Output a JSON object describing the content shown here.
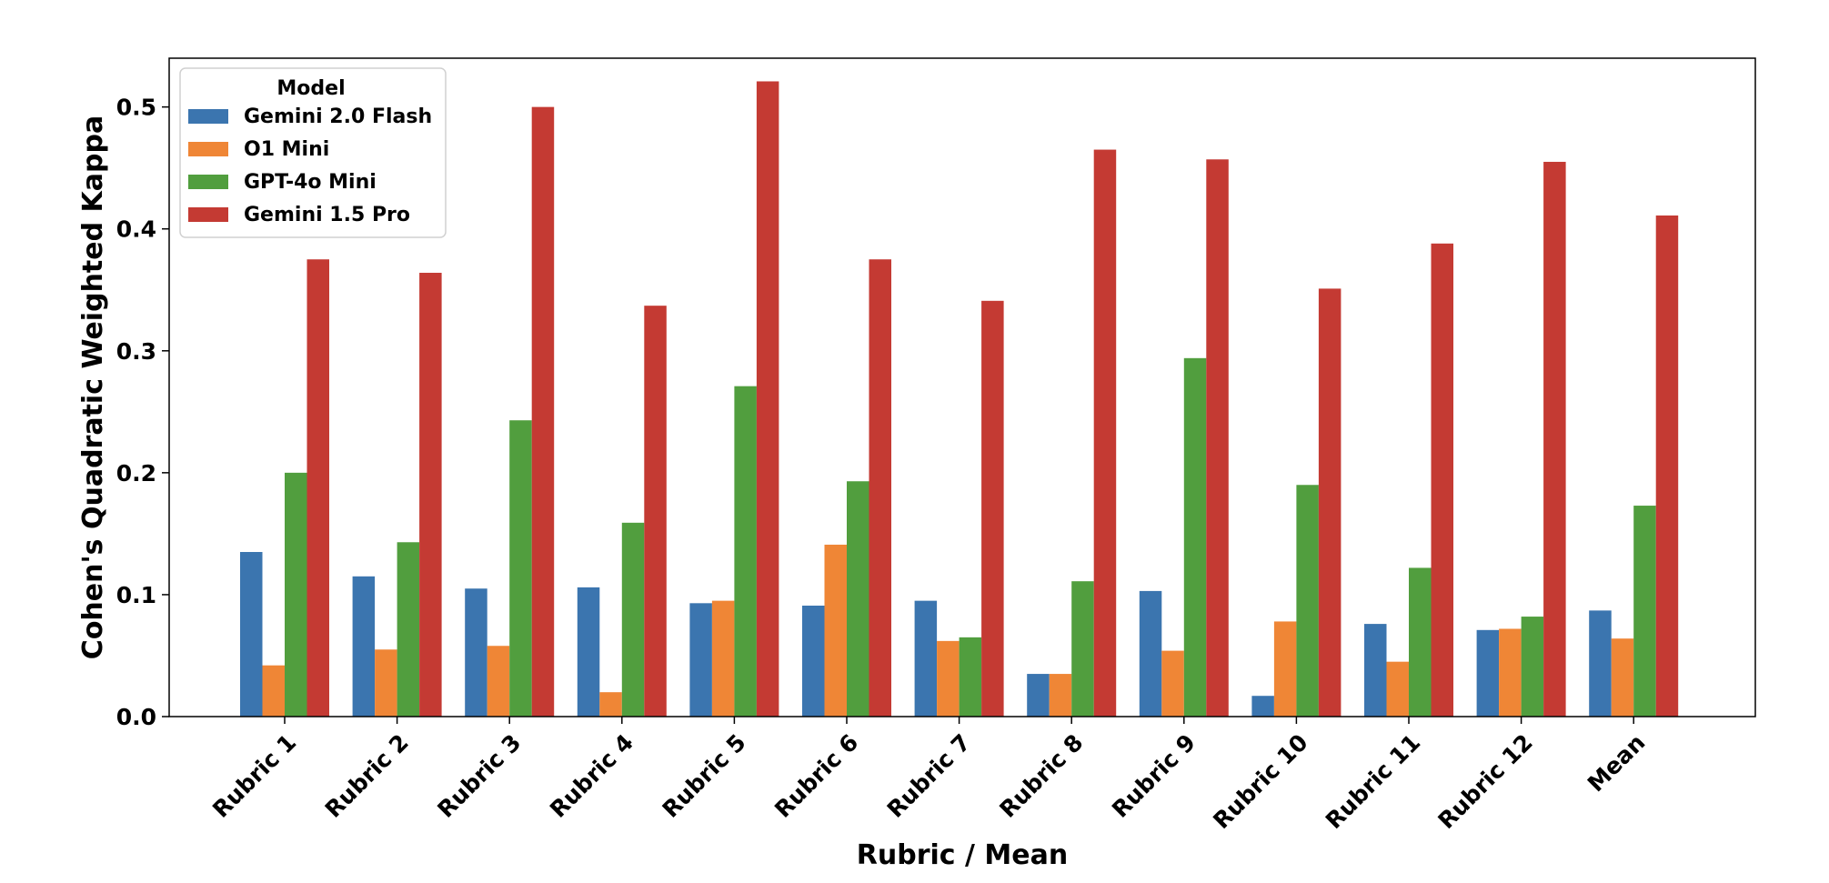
{
  "chart_data": {
    "type": "bar",
    "title": "",
    "xlabel": "Rubric / Mean",
    "ylabel": "Cohen's Quadratic Weighted Kappa",
    "ylim": [
      0,
      0.54
    ],
    "yticks": [
      0.0,
      0.1,
      0.2,
      0.3,
      0.4,
      0.5
    ],
    "ytick_labels": [
      "0.0",
      "0.1",
      "0.2",
      "0.3",
      "0.4",
      "0.5"
    ],
    "grid": false,
    "legend": {
      "title": "Model",
      "placement": "top-left"
    },
    "categories": [
      "Rubric 1",
      "Rubric 2",
      "Rubric 3",
      "Rubric 4",
      "Rubric 5",
      "Rubric 6",
      "Rubric 7",
      "Rubric 8",
      "Rubric 9",
      "Rubric 10",
      "Rubric 11",
      "Rubric 12",
      "Mean"
    ],
    "series": [
      {
        "name": "Gemini 2.0 Flash",
        "color": "#3b75af",
        "values": [
          0.135,
          0.115,
          0.105,
          0.106,
          0.093,
          0.091,
          0.095,
          0.035,
          0.103,
          0.017,
          0.076,
          0.071,
          0.087
        ]
      },
      {
        "name": "O1 Mini",
        "color": "#ef8636",
        "values": [
          0.042,
          0.055,
          0.058,
          0.02,
          0.095,
          0.141,
          0.062,
          0.035,
          0.054,
          0.078,
          0.045,
          0.072,
          0.064
        ]
      },
      {
        "name": "GPT-4o Mini",
        "color": "#519e3e",
        "values": [
          0.2,
          0.143,
          0.243,
          0.159,
          0.271,
          0.193,
          0.065,
          0.111,
          0.294,
          0.19,
          0.122,
          0.082,
          0.173
        ]
      },
      {
        "name": "Gemini 1.5 Pro",
        "color": "#c43a33",
        "values": [
          0.375,
          0.364,
          0.5,
          0.337,
          0.521,
          0.375,
          0.341,
          0.465,
          0.457,
          0.351,
          0.388,
          0.455,
          0.411
        ]
      }
    ]
  }
}
